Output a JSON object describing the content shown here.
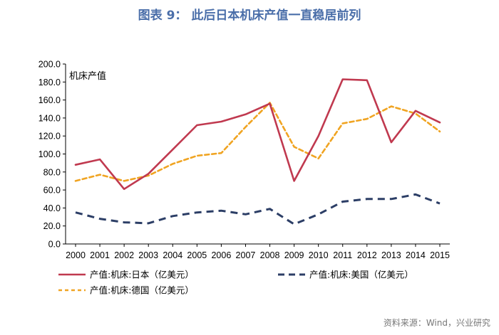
{
  "chart_data": {
    "type": "line",
    "title": "图表 9： 此后日本机床产值一直稳居前列",
    "ylabel": "机床产值",
    "xlabel": "",
    "ylim": [
      0,
      200
    ],
    "ytick_step": 20,
    "y_tick_labels": [
      "0.0",
      "20.0",
      "40.0",
      "60.0",
      "80.0",
      "100.0",
      "120.0",
      "140.0",
      "160.0",
      "180.0",
      "200.0"
    ],
    "categories": [
      "2000",
      "2001",
      "2002",
      "2003",
      "2004",
      "2005",
      "2006",
      "2007",
      "2008",
      "2009",
      "2010",
      "2011",
      "2012",
      "2013",
      "2014",
      "2015"
    ],
    "series": [
      {
        "name": "产值:机床:日本（亿美元）",
        "color": "#c0394f",
        "style": "solid",
        "values": [
          88,
          94,
          61,
          78,
          105,
          132,
          136,
          144,
          156,
          70,
          120,
          183,
          182,
          113,
          148,
          135
        ]
      },
      {
        "name": "产值:机床:美国（亿美元）",
        "color": "#2c3e66",
        "style": "dashed",
        "values": [
          35,
          28,
          24,
          23,
          31,
          35,
          37,
          33,
          39,
          22,
          33,
          47,
          50,
          50,
          55,
          45
        ]
      },
      {
        "name": "产值:机床:德国（亿美元）",
        "color": "#f0a422",
        "style": "dashed",
        "values": [
          70,
          77,
          70,
          76,
          89,
          98,
          101,
          130,
          157,
          108,
          95,
          134,
          139,
          153,
          145,
          125
        ]
      }
    ],
    "legend_position": "bottom",
    "grid": false
  },
  "source": "资料来源：Wind，兴业研究"
}
